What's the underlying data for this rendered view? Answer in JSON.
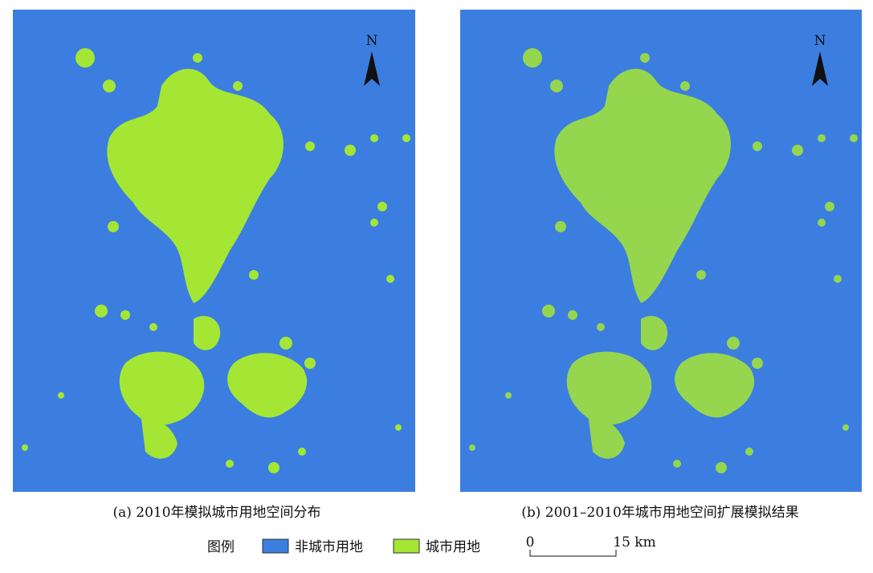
{
  "panels": [
    {
      "caption": "(a) 2010年模拟城市用地空间分布",
      "north": "N"
    },
    {
      "caption": "(b) 2001–2010年城市用地空间扩展模拟结果",
      "north": "N"
    }
  ],
  "legend": {
    "title": "图例",
    "items": [
      {
        "label": "非城市用地",
        "color": "#3b7ee0"
      },
      {
        "label": "城市用地",
        "color": "#a5e635"
      }
    ]
  },
  "scale_bar": {
    "start": "0",
    "end": "15 km"
  }
}
